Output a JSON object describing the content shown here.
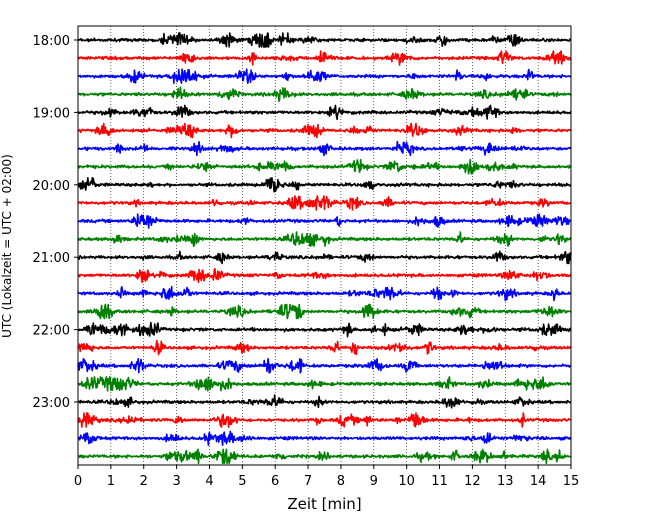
{
  "chart_data": {
    "type": "line",
    "title": "",
    "xlabel": "Zeit  [min]",
    "ylabel": "UTC (Lokalzeit = UTC + 02:00)",
    "xlim": [
      0,
      15
    ],
    "x_ticks": [
      "0",
      "1",
      "2",
      "3",
      "4",
      "5",
      "6",
      "7",
      "8",
      "9",
      "10",
      "11",
      "12",
      "13",
      "14",
      "15"
    ],
    "y_tick_labels": [
      "18:00",
      "19:00",
      "20:00",
      "21:00",
      "22:00",
      "23:00"
    ],
    "start_time": "18:00",
    "row_interval_minutes": 15,
    "vertical_grid": "dotted at each minute",
    "colors": [
      "#000000",
      "#ff0000",
      "#0000ff",
      "#008000"
    ],
    "color_cycle": [
      "black",
      "red",
      "blue",
      "green"
    ],
    "series": [
      {
        "start": "18:00",
        "color_index": 0
      },
      {
        "start": "18:15",
        "color_index": 1
      },
      {
        "start": "18:30",
        "color_index": 2
      },
      {
        "start": "18:45",
        "color_index": 3
      },
      {
        "start": "19:00",
        "color_index": 0
      },
      {
        "start": "19:15",
        "color_index": 1
      },
      {
        "start": "19:30",
        "color_index": 2
      },
      {
        "start": "19:45",
        "color_index": 3
      },
      {
        "start": "20:00",
        "color_index": 0
      },
      {
        "start": "20:15",
        "color_index": 1
      },
      {
        "start": "20:30",
        "color_index": 2
      },
      {
        "start": "20:45",
        "color_index": 3
      },
      {
        "start": "21:00",
        "color_index": 0
      },
      {
        "start": "21:15",
        "color_index": 1
      },
      {
        "start": "21:30",
        "color_index": 2
      },
      {
        "start": "21:45",
        "color_index": 3
      },
      {
        "start": "22:00",
        "color_index": 0
      },
      {
        "start": "22:15",
        "color_index": 1
      },
      {
        "start": "22:30",
        "color_index": 2
      },
      {
        "start": "22:45",
        "color_index": 3
      },
      {
        "start": "23:00",
        "color_index": 0
      },
      {
        "start": "23:15",
        "color_index": 1
      },
      {
        "start": "23:30",
        "color_index": 2
      },
      {
        "start": "23:45",
        "color_index": 3
      }
    ]
  }
}
